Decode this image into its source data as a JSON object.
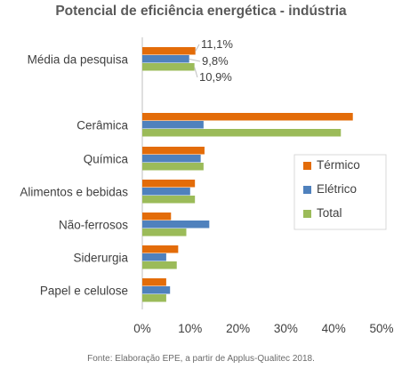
{
  "chart_data": {
    "type": "bar",
    "orientation": "horizontal",
    "title": "Potencial de eficiência energética - indústria",
    "source": "Fonte: Elaboração EPE, a partir de Applus-Qualitec 2018.",
    "categories": [
      "Média da pesquisa",
      "Cerâmica",
      "Química",
      "Alimentos e bebidas",
      "Não-ferrosos",
      "Siderurgia",
      "Papel e celulose"
    ],
    "series": [
      {
        "name": "Térmico",
        "color": "#e36c09",
        "values": [
          11.1,
          44,
          13,
          11,
          6,
          7.5,
          5
        ]
      },
      {
        "name": "Elétrico",
        "color": "#4f81bd",
        "values": [
          9.8,
          12.8,
          12.2,
          10,
          14,
          5,
          5.8
        ]
      },
      {
        "name": "Total",
        "color": "#9bbb59",
        "values": [
          10.9,
          41.5,
          12.8,
          11,
          9.2,
          7.2,
          5
        ]
      }
    ],
    "data_labels": {
      "category": "Média da pesquisa",
      "labels": [
        "11,1%",
        "9,8%",
        "10,9%"
      ]
    },
    "xlim": [
      0,
      50
    ],
    "xticks": [
      0,
      10,
      20,
      30,
      40,
      50
    ],
    "xtick_labels": [
      "0%",
      "10%",
      "20%",
      "30%",
      "40%",
      "50%"
    ],
    "grid": false,
    "legend": "right"
  }
}
